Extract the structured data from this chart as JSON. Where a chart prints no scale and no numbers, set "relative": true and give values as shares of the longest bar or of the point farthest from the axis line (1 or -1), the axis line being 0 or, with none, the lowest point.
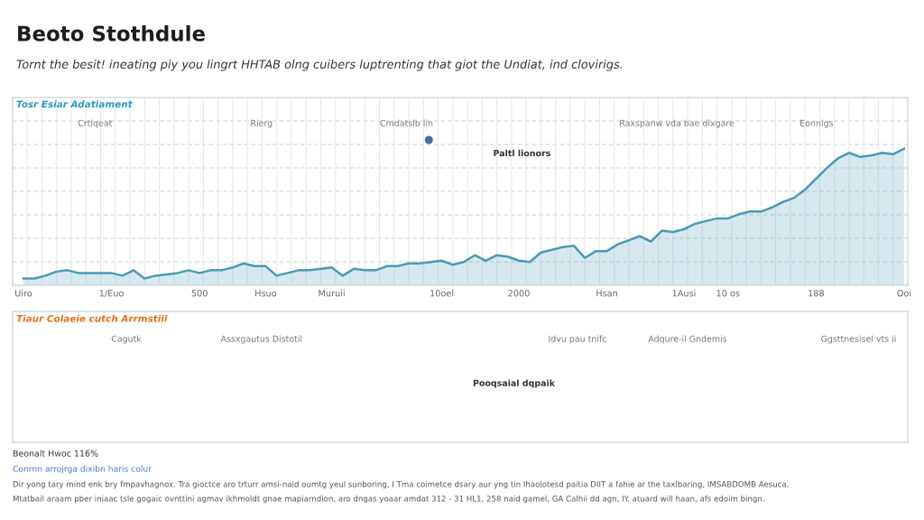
{
  "chart_data": [
    {
      "type": "area",
      "title": "Beoto Stothdule",
      "subtitle": "Tornt the besit! ineating piy you lingrt HHTAB olng cuibers luptrenting that giot the Undiat, ind clovirigs.",
      "relative": true,
      "grid": true,
      "annotations": [
        "Tosr Esiar Adatiament",
        "Crtiqeat",
        "Rierg",
        "Cmdatslb lin",
        "Raxspanw vda bae dixgare",
        "Eonnigs",
        "Paltl lionors"
      ],
      "categories": [
        "Uiro",
        null,
        null,
        null,
        null,
        null,
        null,
        null,
        "1/Euo",
        null,
        null,
        null,
        null,
        null,
        null,
        null,
        "500",
        null,
        null,
        null,
        null,
        null,
        "Hsuo",
        null,
        null,
        null,
        null,
        null,
        "Muruii",
        null,
        null,
        null,
        null,
        null,
        null,
        null,
        null,
        null,
        "10oel",
        null,
        null,
        null,
        null,
        null,
        null,
        "2000",
        null,
        null,
        null,
        null,
        null,
        null,
        null,
        "Hsan",
        null,
        null,
        null,
        null,
        null,
        null,
        "1Ausi",
        null,
        null,
        null,
        "10 os",
        null,
        null,
        null,
        null,
        null,
        null,
        null,
        "188",
        null,
        null,
        null,
        null,
        null,
        null,
        null,
        "Ooi"
      ],
      "series": [
        {
          "color": "#4a9ab6",
          "values": [
            0.05,
            0.05,
            0.07,
            0.1,
            0.11,
            0.09,
            0.09,
            0.09,
            0.09,
            0.07,
            0.11,
            0.05,
            0.07,
            0.08,
            0.09,
            0.11,
            0.09,
            0.11,
            0.11,
            0.13,
            0.16,
            0.14,
            0.14,
            0.07,
            0.09,
            0.11,
            0.11,
            0.12,
            0.13,
            0.07,
            0.12,
            0.11,
            0.11,
            0.14,
            0.14,
            0.16,
            0.16,
            0.17,
            0.18,
            0.15,
            0.17,
            0.22,
            0.18,
            0.22,
            0.21,
            0.18,
            0.17,
            0.24,
            0.26,
            0.28,
            0.29,
            0.2,
            0.25,
            0.25,
            0.3,
            0.33,
            0.36,
            0.32,
            0.4,
            0.39,
            0.41,
            0.45,
            0.47,
            0.49,
            0.49,
            0.52,
            0.54,
            0.54,
            0.57,
            0.61,
            0.64,
            0.7,
            0.78,
            0.86,
            0.93,
            0.97,
            0.94,
            0.95,
            0.97,
            0.96,
            1
          ]
        }
      ]
    },
    {
      "type": "other",
      "title": "Tiaur Colaeie cutch Arrmstiil",
      "annotations": [
        "Cagutk",
        "Assxgautus Distotil",
        "Idvu pau tnifc",
        "Adqure-il Gndemis",
        "Ggsttnesisel vts ii",
        "Pooqsaial dqpaik",
        "Beonalt Hwoc 116%",
        "Conrnn arrojrga dixibn haris colur",
        "Dir yong tary mind enk bry fmpavhagnox. Tra gioctce aro trturr amsi-naid oumtg yeul sunboring, I Tma coimetce dsary aur yng tin Ihaolotesd paitia DIIT a fahie ar the taxlbaring, IMSABDOMB Aesuca.",
        "Mtatbail araam pber iniaac tsle gogaic ovnttini agmav ikhmoldt gnae mapiarndion, aro dngas yoaar amdat 312 - 31 HL1, 258 naid gamel, GA Calhii dd agn, IY. atuard will haan, afs edoim bingn."
      ]
    }
  ]
}
